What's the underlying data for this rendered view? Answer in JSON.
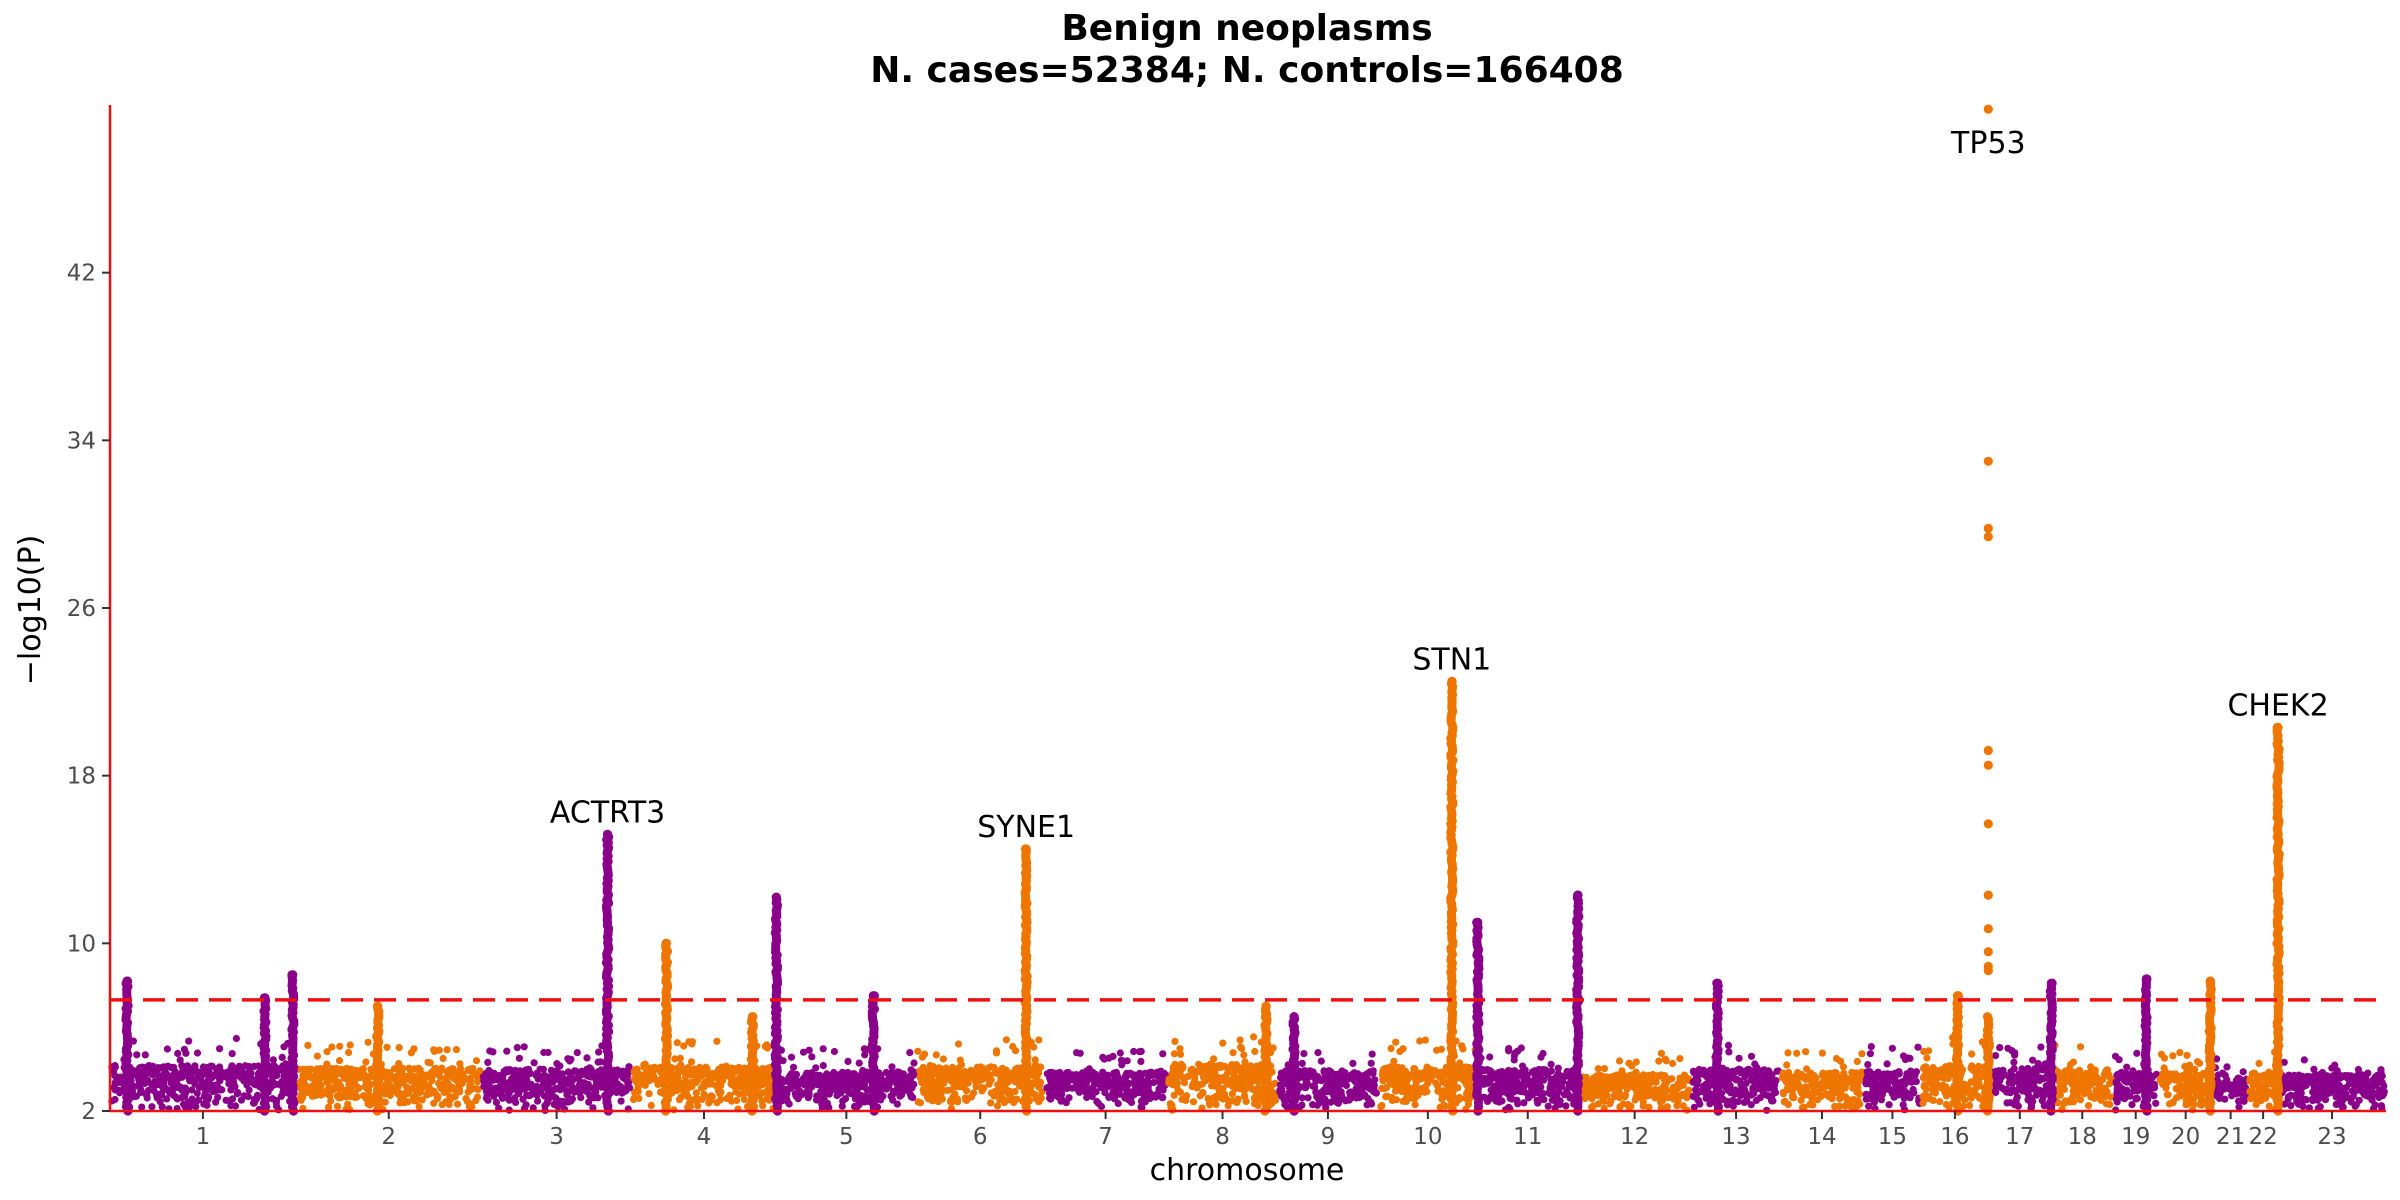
{
  "chart_data": {
    "type": "scatter",
    "subtype": "manhattan",
    "title": "Benign neoplasms",
    "subtitle": "N. cases=52384; N. controls=166408",
    "xlabel": "chromosome",
    "ylabel": "−log10(P)",
    "ylim": [
      2,
      50
    ],
    "yticks": [
      2,
      10,
      18,
      26,
      34,
      42
    ],
    "significance_line": 7.3,
    "significance_color": "#ee1111",
    "colors": {
      "odd": "#8b008b",
      "even": "#ee7600",
      "axis": "#ee1111"
    },
    "grid": false,
    "legend": "none",
    "chromosomes": [
      {
        "name": "1",
        "start": 0,
        "end": 186,
        "max": 5.5,
        "color": "odd"
      },
      {
        "name": "2",
        "start": 186,
        "end": 372,
        "max": 5.3,
        "color": "even"
      },
      {
        "name": "3",
        "start": 372,
        "end": 522,
        "max": 5.2,
        "color": "odd"
      },
      {
        "name": "4",
        "start": 522,
        "end": 667,
        "max": 5.4,
        "color": "even"
      },
      {
        "name": "5",
        "start": 667,
        "end": 807,
        "max": 5.0,
        "color": "odd"
      },
      {
        "name": "6",
        "start": 807,
        "end": 935,
        "max": 5.4,
        "color": "even"
      },
      {
        "name": "7",
        "start": 935,
        "end": 1058,
        "max": 5.0,
        "color": "odd"
      },
      {
        "name": "8",
        "start": 1058,
        "end": 1169,
        "max": 5.6,
        "color": "even"
      },
      {
        "name": "9",
        "start": 1169,
        "end": 1269,
        "max": 5.1,
        "color": "odd"
      },
      {
        "name": "10",
        "start": 1269,
        "end": 1369,
        "max": 5.4,
        "color": "even"
      },
      {
        "name": "11",
        "start": 1369,
        "end": 1469,
        "max": 5.2,
        "color": "odd"
      },
      {
        "name": "12",
        "start": 1469,
        "end": 1583,
        "max": 4.8,
        "color": "even"
      },
      {
        "name": "13",
        "start": 1583,
        "end": 1672,
        "max": 5.2,
        "color": "odd"
      },
      {
        "name": "14",
        "start": 1672,
        "end": 1755,
        "max": 5.0,
        "color": "even"
      },
      {
        "name": "15",
        "start": 1755,
        "end": 1813,
        "max": 5.1,
        "color": "odd"
      },
      {
        "name": "16",
        "start": 1813,
        "end": 1880,
        "max": 5.5,
        "color": "even"
      },
      {
        "name": "17",
        "start": 1880,
        "end": 1943,
        "max": 5.3,
        "color": "odd"
      },
      {
        "name": "18",
        "start": 1943,
        "end": 2005,
        "max": 5.2,
        "color": "even"
      },
      {
        "name": "19",
        "start": 2005,
        "end": 2050,
        "max": 5.0,
        "color": "odd"
      },
      {
        "name": "20",
        "start": 2050,
        "end": 2105,
        "max": 5.1,
        "color": "even"
      },
      {
        "name": "21",
        "start": 2105,
        "end": 2140,
        "max": 4.6,
        "color": "odd"
      },
      {
        "name": "22",
        "start": 2140,
        "end": 2170,
        "max": 5.0,
        "color": "even"
      },
      {
        "name": "23",
        "start": 2170,
        "end": 2278,
        "max": 4.8,
        "color": "odd"
      }
    ],
    "peaks": [
      {
        "chr": "1",
        "pos": 17,
        "top": 8.2,
        "gene": ""
      },
      {
        "chr": "1",
        "pos": 155,
        "top": 7.4,
        "gene": ""
      },
      {
        "chr": "1",
        "pos": 183,
        "top": 8.5,
        "gene": ""
      },
      {
        "chr": "2",
        "pos": 268,
        "top": 7.0,
        "gene": ""
      },
      {
        "chr": "3",
        "pos": 498,
        "top": 15.2,
        "gene": "ACTRT3"
      },
      {
        "chr": "4",
        "pos": 557,
        "top": 10.0,
        "gene": ""
      },
      {
        "chr": "4",
        "pos": 643,
        "top": 6.5,
        "gene": ""
      },
      {
        "chr": "5",
        "pos": 667,
        "top": 12.2,
        "gene": ""
      },
      {
        "chr": "5",
        "pos": 764,
        "top": 7.5,
        "gene": ""
      },
      {
        "chr": "6",
        "pos": 917,
        "top": 14.5,
        "gene": "SYNE1"
      },
      {
        "chr": "8",
        "pos": 1157,
        "top": 7.0,
        "gene": ""
      },
      {
        "chr": "9",
        "pos": 1185,
        "top": 6.5,
        "gene": ""
      },
      {
        "chr": "10",
        "pos": 1343,
        "top": 22.5,
        "gene": "STN1"
      },
      {
        "chr": "11",
        "pos": 1369,
        "top": 11.0,
        "gene": ""
      },
      {
        "chr": "11",
        "pos": 1469,
        "top": 12.3,
        "gene": ""
      },
      {
        "chr": "13",
        "pos": 1609,
        "top": 8.1,
        "gene": ""
      },
      {
        "chr": "16",
        "pos": 1849,
        "top": 7.5,
        "gene": ""
      },
      {
        "chr": "16",
        "pos": 1880,
        "top": 49.8,
        "gene": "TP53"
      },
      {
        "chr": "17",
        "pos": 1943,
        "top": 8.1,
        "gene": ""
      },
      {
        "chr": "19",
        "pos": 2038,
        "top": 8.3,
        "gene": ""
      },
      {
        "chr": "20",
        "pos": 2102,
        "top": 8.2,
        "gene": ""
      },
      {
        "chr": "22",
        "pos": 2170,
        "top": 20.3,
        "gene": "CHEK2"
      }
    ],
    "tp53_extra_points": [
      33.0,
      29.8,
      29.4,
      19.2,
      18.5,
      15.7,
      12.3,
      10.7,
      9.6,
      8.9,
      8.7
    ]
  }
}
